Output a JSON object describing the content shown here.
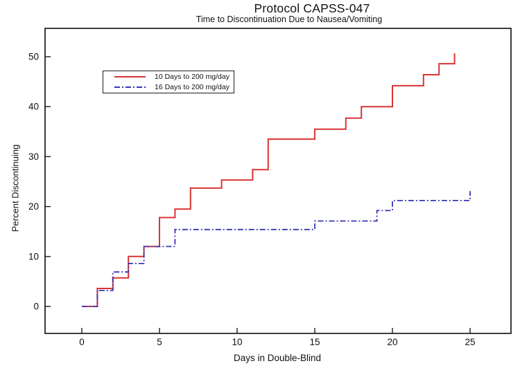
{
  "chart_data": {
    "type": "line",
    "variant": "step-after survival (Kaplan-Meier style)",
    "title": "Protocol CAPSS-047",
    "subtitle": "Time to Discontinuation Due to Nausea/Vomiting",
    "xlabel": "Days in Double-Blind",
    "ylabel": "Percent Discontinuing",
    "x_ticks": [
      0,
      5,
      10,
      15,
      20,
      25
    ],
    "y_ticks": [
      0,
      10,
      20,
      30,
      40,
      50
    ],
    "xlim": [
      -2.4,
      27.6
    ],
    "ylim": [
      -5.5,
      55.5
    ],
    "grid": false,
    "legend_position": "upper-left-inside",
    "series": [
      {
        "name": "10 Days to 200 mg/day",
        "color": "#d93333",
        "style": "solid",
        "points": [
          [
            0,
            0
          ],
          [
            1,
            3.6
          ],
          [
            2,
            5.7
          ],
          [
            3,
            10.0
          ],
          [
            4,
            12.0
          ],
          [
            5,
            17.8
          ],
          [
            6,
            19.5
          ],
          [
            7,
            23.7
          ],
          [
            9,
            25.3
          ],
          [
            11,
            27.4
          ],
          [
            12,
            33.5
          ],
          [
            15,
            35.5
          ],
          [
            17,
            37.7
          ],
          [
            18,
            40.0
          ],
          [
            20,
            44.2
          ],
          [
            22,
            46.4
          ],
          [
            23,
            48.6
          ],
          [
            24,
            50.7
          ]
        ]
      },
      {
        "name": "16 Days to 200 mg/day",
        "color": "#3535b2",
        "style": "dash-dot",
        "points": [
          [
            0,
            0
          ],
          [
            1,
            3.2
          ],
          [
            2,
            6.9
          ],
          [
            3,
            8.6
          ],
          [
            4,
            12.0
          ],
          [
            6,
            15.4
          ],
          [
            15,
            17.1
          ],
          [
            19,
            19.2
          ],
          [
            20,
            21.2
          ],
          [
            25,
            23.1
          ]
        ]
      }
    ]
  }
}
